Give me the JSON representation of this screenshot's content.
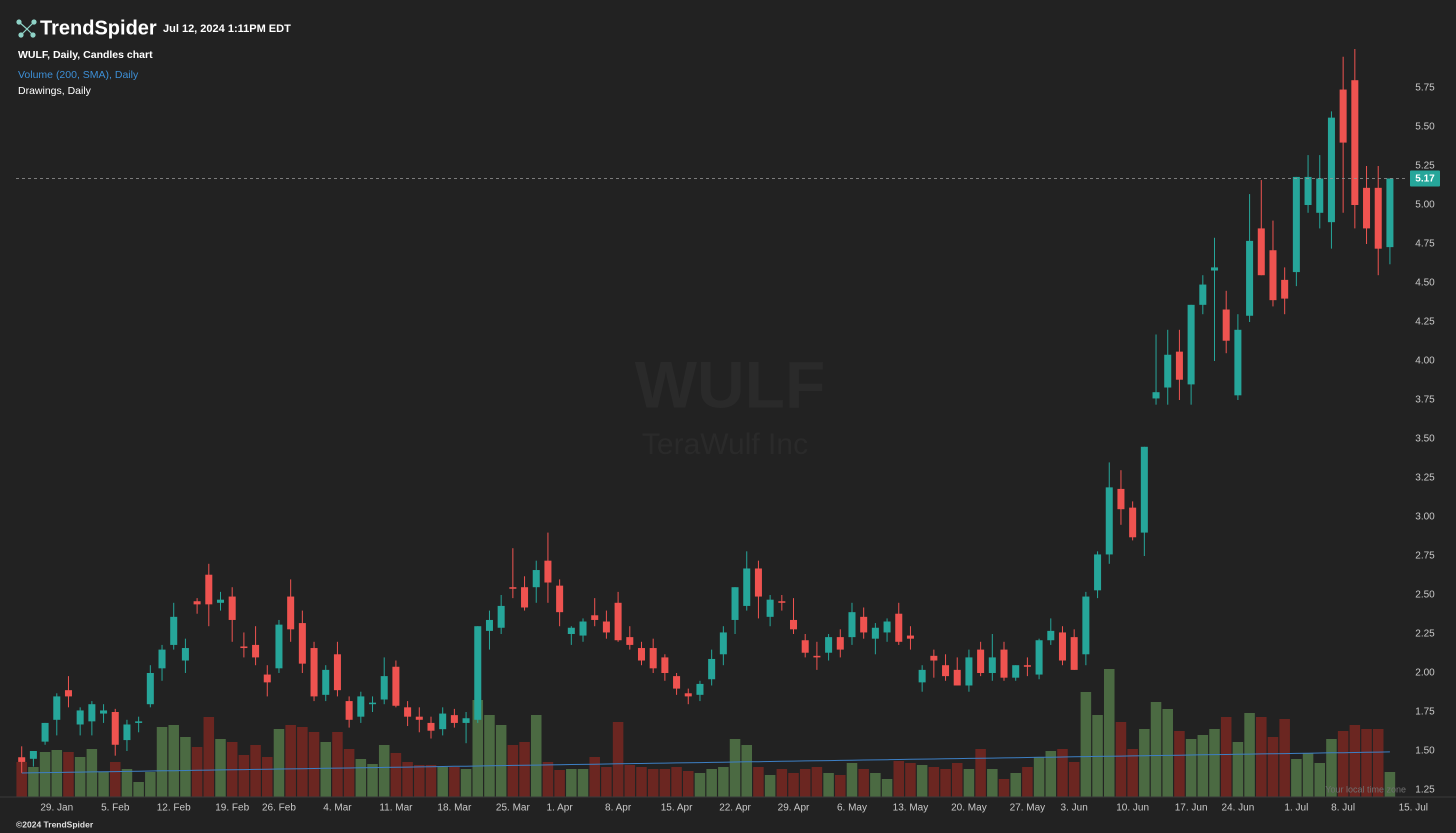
{
  "header": {
    "brand": "TrendSpider",
    "timestamp": "Jul 12, 2024 1:11PM EDT",
    "legend": [
      "WULF, Daily, Candles chart",
      "Volume (200, SMA), Daily",
      "Drawings, Daily"
    ]
  },
  "watermark": {
    "symbol": "WULF",
    "company": "TeraWulf Inc"
  },
  "footer": "©2024 TrendSpider",
  "timezone_note": "Your local time zone",
  "chart_data": {
    "type": "candlestick",
    "ohlc": [
      [
        1.46,
        1.53,
        1.36,
        1.43
      ],
      [
        1.45,
        1.5,
        1.4,
        1.5
      ],
      [
        1.56,
        1.68,
        1.54,
        1.68
      ],
      [
        1.7,
        1.87,
        1.6,
        1.85
      ],
      [
        1.89,
        1.98,
        1.78,
        1.85
      ],
      [
        1.67,
        1.78,
        1.6,
        1.76
      ],
      [
        1.69,
        1.82,
        1.6,
        1.8
      ],
      [
        1.74,
        1.8,
        1.68,
        1.76
      ],
      [
        1.75,
        1.77,
        1.47,
        1.54
      ],
      [
        1.57,
        1.7,
        1.5,
        1.67
      ],
      [
        1.68,
        1.72,
        1.62,
        1.69
      ],
      [
        1.8,
        2.05,
        1.78,
        2.0
      ],
      [
        2.03,
        2.18,
        1.95,
        2.15
      ],
      [
        2.18,
        2.45,
        2.15,
        2.36
      ],
      [
        2.08,
        2.22,
        2.0,
        2.16
      ],
      [
        2.46,
        2.48,
        2.38,
        2.44
      ],
      [
        2.63,
        2.7,
        2.3,
        2.44
      ],
      [
        2.45,
        2.52,
        2.4,
        2.47
      ],
      [
        2.49,
        2.55,
        2.2,
        2.34
      ],
      [
        2.17,
        2.26,
        2.1,
        2.16
      ],
      [
        2.18,
        2.3,
        2.05,
        2.1
      ],
      [
        1.99,
        2.05,
        1.85,
        1.94
      ],
      [
        2.03,
        2.34,
        2.0,
        2.31
      ],
      [
        2.49,
        2.6,
        2.2,
        2.28
      ],
      [
        2.32,
        2.4,
        2.0,
        2.06
      ],
      [
        2.16,
        2.2,
        1.82,
        1.85
      ],
      [
        1.86,
        2.05,
        1.82,
        2.02
      ],
      [
        2.12,
        2.2,
        1.85,
        1.89
      ],
      [
        1.82,
        1.85,
        1.65,
        1.7
      ],
      [
        1.72,
        1.88,
        1.68,
        1.85
      ],
      [
        1.8,
        1.85,
        1.75,
        1.81
      ],
      [
        1.83,
        2.1,
        1.8,
        1.98
      ],
      [
        2.04,
        2.08,
        1.78,
        1.79
      ],
      [
        1.78,
        1.82,
        1.66,
        1.72
      ],
      [
        1.72,
        1.78,
        1.62,
        1.7
      ],
      [
        1.68,
        1.72,
        1.58,
        1.63
      ],
      [
        1.64,
        1.78,
        1.6,
        1.74
      ],
      [
        1.73,
        1.77,
        1.65,
        1.68
      ],
      [
        1.68,
        1.75,
        1.55,
        1.71
      ],
      [
        1.7,
        2.3,
        1.68,
        2.3
      ],
      [
        2.27,
        2.4,
        2.15,
        2.34
      ],
      [
        2.29,
        2.5,
        2.25,
        2.43
      ],
      [
        2.55,
        2.8,
        2.48,
        2.54
      ],
      [
        2.55,
        2.62,
        2.4,
        2.42
      ],
      [
        2.55,
        2.72,
        2.45,
        2.66
      ],
      [
        2.72,
        2.9,
        2.45,
        2.58
      ],
      [
        2.56,
        2.6,
        2.3,
        2.39
      ],
      [
        2.25,
        2.3,
        2.18,
        2.29
      ],
      [
        2.24,
        2.35,
        2.2,
        2.33
      ],
      [
        2.37,
        2.48,
        2.3,
        2.34
      ],
      [
        2.33,
        2.4,
        2.22,
        2.26
      ],
      [
        2.45,
        2.52,
        2.2,
        2.21
      ],
      [
        2.23,
        2.3,
        2.15,
        2.18
      ],
      [
        2.16,
        2.2,
        2.05,
        2.08
      ],
      [
        2.16,
        2.22,
        2.0,
        2.03
      ],
      [
        2.1,
        2.12,
        1.95,
        2.0
      ],
      [
        1.98,
        2.0,
        1.86,
        1.9
      ],
      [
        1.87,
        1.9,
        1.8,
        1.85
      ],
      [
        1.86,
        1.95,
        1.82,
        1.93
      ],
      [
        1.96,
        2.15,
        1.92,
        2.09
      ],
      [
        2.12,
        2.3,
        2.05,
        2.26
      ],
      [
        2.34,
        2.55,
        2.25,
        2.55
      ],
      [
        2.43,
        2.78,
        2.4,
        2.67
      ],
      [
        2.67,
        2.72,
        2.35,
        2.49
      ],
      [
        2.36,
        2.5,
        2.3,
        2.47
      ],
      [
        2.46,
        2.5,
        2.4,
        2.45
      ],
      [
        2.34,
        2.48,
        2.25,
        2.28
      ],
      [
        2.21,
        2.25,
        2.1,
        2.13
      ],
      [
        2.11,
        2.2,
        2.02,
        2.1
      ],
      [
        2.13,
        2.25,
        2.08,
        2.23
      ],
      [
        2.23,
        2.28,
        2.1,
        2.15
      ],
      [
        2.23,
        2.45,
        2.18,
        2.39
      ],
      [
        2.36,
        2.42,
        2.22,
        2.26
      ],
      [
        2.22,
        2.32,
        2.12,
        2.29
      ],
      [
        2.26,
        2.35,
        2.2,
        2.33
      ],
      [
        2.38,
        2.45,
        2.18,
        2.2
      ],
      [
        2.24,
        2.3,
        2.15,
        2.22
      ],
      [
        1.94,
        2.05,
        1.88,
        2.02
      ],
      [
        2.11,
        2.15,
        1.97,
        2.08
      ],
      [
        2.05,
        2.12,
        1.95,
        1.98
      ],
      [
        2.02,
        2.1,
        1.92,
        1.92
      ],
      [
        1.92,
        2.15,
        1.88,
        2.1
      ],
      [
        2.15,
        2.2,
        1.98,
        2.0
      ],
      [
        2.0,
        2.25,
        1.95,
        2.1
      ],
      [
        2.15,
        2.2,
        1.95,
        1.97
      ],
      [
        1.97,
        2.05,
        1.95,
        2.05
      ],
      [
        2.05,
        2.1,
        1.98,
        2.04
      ],
      [
        1.99,
        2.22,
        1.96,
        2.21
      ],
      [
        2.21,
        2.35,
        2.18,
        2.27
      ],
      [
        2.26,
        2.3,
        2.05,
        2.08
      ],
      [
        2.23,
        2.28,
        2.02,
        2.02
      ],
      [
        2.12,
        2.52,
        2.05,
        2.49
      ],
      [
        2.53,
        2.78,
        2.48,
        2.76
      ],
      [
        2.76,
        3.35,
        2.7,
        3.19
      ],
      [
        3.18,
        3.3,
        2.95,
        3.05
      ],
      [
        3.06,
        3.1,
        2.85,
        2.87
      ],
      [
        2.9,
        3.45,
        2.75,
        3.45
      ],
      [
        3.76,
        4.17,
        3.72,
        3.8
      ],
      [
        3.83,
        4.2,
        3.72,
        4.04
      ],
      [
        4.06,
        4.2,
        3.75,
        3.88
      ],
      [
        3.85,
        4.36,
        3.72,
        4.36
      ],
      [
        4.36,
        4.55,
        4.3,
        4.49
      ],
      [
        4.58,
        4.79,
        4.0,
        4.6
      ],
      [
        4.33,
        4.45,
        4.05,
        4.13
      ],
      [
        3.78,
        4.3,
        3.75,
        4.2
      ],
      [
        4.29,
        5.07,
        4.25,
        4.77
      ],
      [
        4.85,
        5.16,
        4.55,
        4.55
      ],
      [
        4.71,
        4.9,
        4.35,
        4.39
      ],
      [
        4.52,
        4.6,
        4.3,
        4.4
      ],
      [
        4.57,
        5.18,
        4.48,
        5.18
      ],
      [
        5.0,
        5.32,
        4.95,
        5.18
      ],
      [
        4.95,
        5.32,
        4.85,
        5.17
      ],
      [
        4.89,
        5.6,
        4.72,
        5.56
      ],
      [
        5.74,
        5.95,
        4.95,
        5.4
      ],
      [
        5.8,
        6.0,
        4.85,
        5.0
      ],
      [
        5.11,
        5.25,
        4.75,
        4.85
      ],
      [
        5.11,
        5.25,
        4.55,
        4.72
      ],
      [
        4.73,
        5.17,
        4.62,
        5.17
      ]
    ],
    "up_color": "#26a69a",
    "down_color": "#ef5350",
    "ylim": [
      1.25,
      6.25
    ],
    "yticks": [
      1.25,
      {
        "value": 1.5,
        "label": "1.50"
      },
      1.75,
      {
        "value": 2,
        "label": "2.00"
      },
      2.25,
      {
        "value": 2.5,
        "label": "2.50"
      },
      2.75,
      {
        "value": 3,
        "label": "3.00"
      },
      3.25,
      {
        "value": 3.5,
        "label": "3.50"
      },
      3.75,
      {
        "value": 4,
        "label": "4.00"
      },
      4.25,
      {
        "value": 4.5,
        "label": "4.50"
      },
      4.75,
      {
        "value": 5,
        "label": "5.00"
      },
      5.25,
      {
        "value": 5.5,
        "label": "5.50"
      },
      5.75
    ],
    "xlim": [
      -1,
      120
    ],
    "xticks": [
      {
        "value": 3,
        "label": "29. Jan"
      },
      {
        "value": 8,
        "label": "5. Feb"
      },
      {
        "value": 13,
        "label": "12. Feb"
      },
      {
        "value": 18,
        "label": "19. Feb"
      },
      {
        "value": 22,
        "label": "26. Feb"
      },
      {
        "value": 27,
        "label": "4. Mar"
      },
      {
        "value": 32,
        "label": "11. Mar"
      },
      {
        "value": 37,
        "label": "18. Mar"
      },
      {
        "value": 42,
        "label": "25. Mar"
      },
      {
        "value": 46,
        "label": "1. Apr"
      },
      {
        "value": 51,
        "label": "8. Apr"
      },
      {
        "value": 56,
        "label": "15. Apr"
      },
      {
        "value": 61,
        "label": "22. Apr"
      },
      {
        "value": 66,
        "label": "29. Apr"
      },
      {
        "value": 71,
        "label": "6. May"
      },
      {
        "value": 76,
        "label": "13. May"
      },
      {
        "value": 81,
        "label": "20. May"
      },
      {
        "value": 86,
        "label": "27. May"
      },
      {
        "value": 90,
        "label": "3. Jun"
      },
      {
        "value": 95,
        "label": "10. Jun"
      },
      {
        "value": 100,
        "label": "17. Jun"
      },
      {
        "value": 104,
        "label": "24. Jun"
      },
      {
        "value": 109,
        "label": "1. Jul"
      },
      {
        "value": 113,
        "label": "8. Jul"
      },
      {
        "value": 119,
        "label": "15. Jul"
      }
    ],
    "last_price": 5.17,
    "volume": {
      "values": [
        35,
        30,
        45,
        47,
        45,
        40,
        48,
        25,
        35,
        28,
        15,
        25,
        70,
        72,
        60,
        50,
        80,
        58,
        55,
        42,
        52,
        40,
        68,
        72,
        70,
        65,
        55,
        65,
        48,
        38,
        33,
        52,
        44,
        35,
        32,
        32,
        30,
        30,
        28,
        97,
        82,
        72,
        52,
        55,
        82,
        35,
        27,
        28,
        28,
        40,
        30,
        75,
        32,
        30,
        28,
        28,
        30,
        26,
        24,
        28,
        30,
        58,
        52,
        30,
        22,
        28,
        24,
        28,
        30,
        24,
        22,
        34,
        28,
        24,
        18,
        36,
        34,
        32,
        30,
        28,
        34,
        28,
        48,
        28,
        18,
        24,
        30,
        40,
        46,
        48,
        35,
        105,
        82,
        128,
        75,
        48,
        68,
        95,
        88,
        66,
        58,
        62,
        68,
        80,
        55,
        84,
        80,
        60,
        78,
        38,
        44,
        34,
        58,
        66,
        72,
        68,
        68,
        25
      ],
      "ylim": [
        0,
        130
      ],
      "up_color": "#4b6a42",
      "down_color": "#6b2621",
      "sma": {
        "color": "#3d7fc4",
        "values": [
          24.0,
          24.2,
          24.4,
          24.5,
          24.7,
          24.9,
          25.1,
          25.3,
          25.4,
          25.6,
          25.8,
          26.0,
          26.2,
          26.3,
          26.5,
          26.7,
          26.9,
          27.1,
          27.2,
          27.4,
          27.6,
          27.8,
          28.0,
          28.1,
          28.3,
          28.5,
          28.7,
          28.9,
          29.0,
          29.2,
          29.4,
          29.6,
          29.8,
          29.9,
          30.1,
          30.3,
          30.5,
          30.7,
          30.8,
          31.0,
          31.2,
          31.4,
          31.6,
          31.7,
          31.9,
          32.1,
          32.3,
          32.5,
          32.6,
          32.8,
          33.0,
          33.2,
          33.4,
          33.5,
          33.7,
          33.9,
          34.1,
          34.3,
          34.4,
          34.6,
          34.8,
          35.0,
          35.2,
          35.3,
          35.5,
          35.7,
          35.9,
          36.1,
          36.2,
          36.4,
          36.6,
          36.8,
          37.0,
          37.1,
          37.3,
          37.5,
          37.7,
          37.9,
          38.0,
          38.2,
          38.4,
          38.6,
          38.8,
          38.9,
          39.1,
          39.3,
          39.5,
          39.7,
          39.8,
          40.0,
          40.2,
          40.4,
          40.6,
          40.7,
          40.9,
          41.1,
          41.3,
          41.5,
          41.6,
          41.8,
          42.0,
          42.2,
          42.4,
          42.5,
          42.7,
          42.9,
          43.1,
          43.3,
          43.4,
          43.6,
          43.8,
          44.0,
          44.2,
          44.3,
          44.5,
          44.7,
          44.9,
          45.1
        ]
      }
    }
  }
}
